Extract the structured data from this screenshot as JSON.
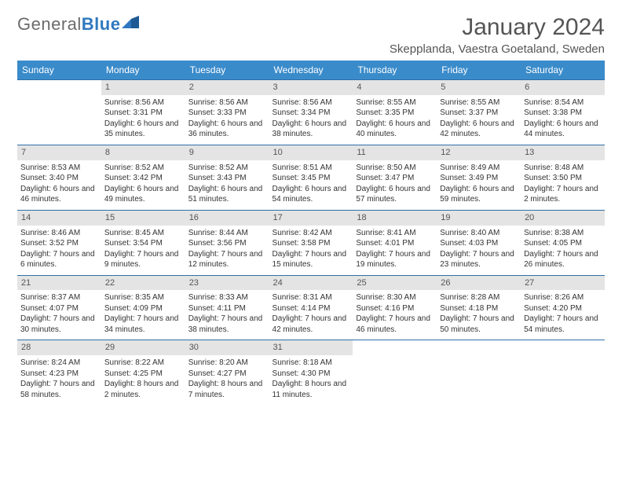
{
  "logo": {
    "text_gray": "General",
    "text_blue": "Blue"
  },
  "title": "January 2024",
  "location": "Skepplanda, Vaestra Goetaland, Sweden",
  "colors": {
    "header_bg": "#3a8bca",
    "header_text": "#ffffff",
    "daynum_bg": "#e4e4e4",
    "rule": "#2f6fa8",
    "text": "#333333",
    "title_text": "#555555"
  },
  "weekdays": [
    "Sunday",
    "Monday",
    "Tuesday",
    "Wednesday",
    "Thursday",
    "Friday",
    "Saturday"
  ],
  "weeks": [
    [
      null,
      {
        "n": "1",
        "sunrise": "8:56 AM",
        "sunset": "3:31 PM",
        "daylight": "6 hours and 35 minutes."
      },
      {
        "n": "2",
        "sunrise": "8:56 AM",
        "sunset": "3:33 PM",
        "daylight": "6 hours and 36 minutes."
      },
      {
        "n": "3",
        "sunrise": "8:56 AM",
        "sunset": "3:34 PM",
        "daylight": "6 hours and 38 minutes."
      },
      {
        "n": "4",
        "sunrise": "8:55 AM",
        "sunset": "3:35 PM",
        "daylight": "6 hours and 40 minutes."
      },
      {
        "n": "5",
        "sunrise": "8:55 AM",
        "sunset": "3:37 PM",
        "daylight": "6 hours and 42 minutes."
      },
      {
        "n": "6",
        "sunrise": "8:54 AM",
        "sunset": "3:38 PM",
        "daylight": "6 hours and 44 minutes."
      }
    ],
    [
      {
        "n": "7",
        "sunrise": "8:53 AM",
        "sunset": "3:40 PM",
        "daylight": "6 hours and 46 minutes."
      },
      {
        "n": "8",
        "sunrise": "8:52 AM",
        "sunset": "3:42 PM",
        "daylight": "6 hours and 49 minutes."
      },
      {
        "n": "9",
        "sunrise": "8:52 AM",
        "sunset": "3:43 PM",
        "daylight": "6 hours and 51 minutes."
      },
      {
        "n": "10",
        "sunrise": "8:51 AM",
        "sunset": "3:45 PM",
        "daylight": "6 hours and 54 minutes."
      },
      {
        "n": "11",
        "sunrise": "8:50 AM",
        "sunset": "3:47 PM",
        "daylight": "6 hours and 57 minutes."
      },
      {
        "n": "12",
        "sunrise": "8:49 AM",
        "sunset": "3:49 PM",
        "daylight": "6 hours and 59 minutes."
      },
      {
        "n": "13",
        "sunrise": "8:48 AM",
        "sunset": "3:50 PM",
        "daylight": "7 hours and 2 minutes."
      }
    ],
    [
      {
        "n": "14",
        "sunrise": "8:46 AM",
        "sunset": "3:52 PM",
        "daylight": "7 hours and 6 minutes."
      },
      {
        "n": "15",
        "sunrise": "8:45 AM",
        "sunset": "3:54 PM",
        "daylight": "7 hours and 9 minutes."
      },
      {
        "n": "16",
        "sunrise": "8:44 AM",
        "sunset": "3:56 PM",
        "daylight": "7 hours and 12 minutes."
      },
      {
        "n": "17",
        "sunrise": "8:42 AM",
        "sunset": "3:58 PM",
        "daylight": "7 hours and 15 minutes."
      },
      {
        "n": "18",
        "sunrise": "8:41 AM",
        "sunset": "4:01 PM",
        "daylight": "7 hours and 19 minutes."
      },
      {
        "n": "19",
        "sunrise": "8:40 AM",
        "sunset": "4:03 PM",
        "daylight": "7 hours and 23 minutes."
      },
      {
        "n": "20",
        "sunrise": "8:38 AM",
        "sunset": "4:05 PM",
        "daylight": "7 hours and 26 minutes."
      }
    ],
    [
      {
        "n": "21",
        "sunrise": "8:37 AM",
        "sunset": "4:07 PM",
        "daylight": "7 hours and 30 minutes."
      },
      {
        "n": "22",
        "sunrise": "8:35 AM",
        "sunset": "4:09 PM",
        "daylight": "7 hours and 34 minutes."
      },
      {
        "n": "23",
        "sunrise": "8:33 AM",
        "sunset": "4:11 PM",
        "daylight": "7 hours and 38 minutes."
      },
      {
        "n": "24",
        "sunrise": "8:31 AM",
        "sunset": "4:14 PM",
        "daylight": "7 hours and 42 minutes."
      },
      {
        "n": "25",
        "sunrise": "8:30 AM",
        "sunset": "4:16 PM",
        "daylight": "7 hours and 46 minutes."
      },
      {
        "n": "26",
        "sunrise": "8:28 AM",
        "sunset": "4:18 PM",
        "daylight": "7 hours and 50 minutes."
      },
      {
        "n": "27",
        "sunrise": "8:26 AM",
        "sunset": "4:20 PM",
        "daylight": "7 hours and 54 minutes."
      }
    ],
    [
      {
        "n": "28",
        "sunrise": "8:24 AM",
        "sunset": "4:23 PM",
        "daylight": "7 hours and 58 minutes."
      },
      {
        "n": "29",
        "sunrise": "8:22 AM",
        "sunset": "4:25 PM",
        "daylight": "8 hours and 2 minutes."
      },
      {
        "n": "30",
        "sunrise": "8:20 AM",
        "sunset": "4:27 PM",
        "daylight": "8 hours and 7 minutes."
      },
      {
        "n": "31",
        "sunrise": "8:18 AM",
        "sunset": "4:30 PM",
        "daylight": "8 hours and 11 minutes."
      },
      null,
      null,
      null
    ]
  ],
  "labels": {
    "sunrise": "Sunrise: ",
    "sunset": "Sunset: ",
    "daylight": "Daylight: "
  }
}
